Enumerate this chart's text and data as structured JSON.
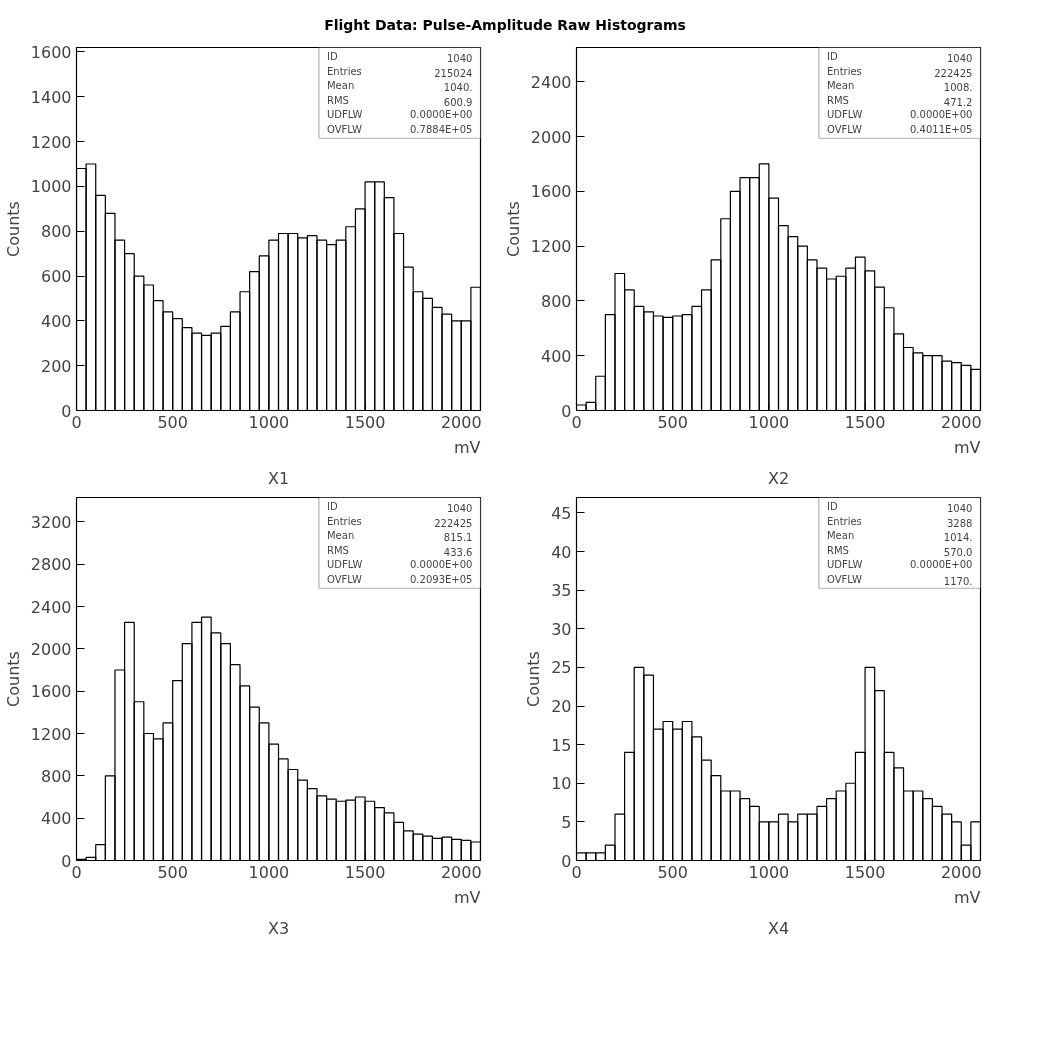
{
  "chart_data": [
    {
      "type": "histogram",
      "subtitle": "Flight Data: Pulse-Amplitude Raw Histograms",
      "title": "X1",
      "xlabel": "mV",
      "ylabel": "Counts",
      "color": "#000000",
      "grid": false,
      "bins": [
        0,
        50,
        100,
        150,
        200,
        250,
        300,
        350,
        400,
        450,
        500,
        550,
        600,
        650,
        700,
        750,
        800,
        850,
        900,
        950,
        1000,
        1050,
        1100,
        1150,
        1200,
        1250,
        1300,
        1350,
        1400,
        1450,
        1500,
        1550,
        1600,
        1650,
        1700,
        1750,
        1800,
        1850,
        1900,
        1950,
        2000,
        2050,
        2100
      ],
      "values": [
        1080,
        1100,
        960,
        880,
        760,
        700,
        600,
        560,
        490,
        440,
        410,
        370,
        345,
        335,
        345,
        375,
        440,
        530,
        620,
        690,
        760,
        790,
        790,
        770,
        780,
        760,
        740,
        760,
        820,
        900,
        1020,
        1020,
        950,
        790,
        640,
        530,
        500,
        460,
        430,
        400,
        400,
        550
      ],
      "xlim": [
        0,
        2100
      ],
      "xticks": [
        0,
        500,
        1000,
        1500,
        2000
      ],
      "ylim": [
        0,
        1620
      ],
      "yticks": [
        0,
        200,
        400,
        600,
        800,
        1000,
        1200,
        1400,
        1600
      ],
      "annotations": [
        "ID",
        "1040",
        "Entries",
        "215024",
        "Mean",
        "1040.",
        "RMS",
        "600.9",
        "UDFLW",
        "0.0000E+00",
        "OVFLW",
        "0.7884E+05"
      ]
    },
    {
      "type": "histogram",
      "title": "X2",
      "xlabel": "mV",
      "ylabel": "Counts",
      "color": "#000000",
      "grid": false,
      "bins": [
        0,
        50,
        100,
        150,
        200,
        250,
        300,
        350,
        400,
        450,
        500,
        550,
        600,
        650,
        700,
        750,
        800,
        850,
        900,
        950,
        1000,
        1050,
        1100,
        1150,
        1200,
        1250,
        1300,
        1350,
        1400,
        1450,
        1500,
        1550,
        1600,
        1650,
        1700,
        1750,
        1800,
        1850,
        1900,
        1950,
        2000,
        2050,
        2100
      ],
      "values": [
        40,
        60,
        250,
        700,
        1000,
        880,
        760,
        720,
        690,
        680,
        690,
        700,
        760,
        880,
        1100,
        1400,
        1600,
        1700,
        1700,
        1800,
        1550,
        1350,
        1270,
        1200,
        1100,
        1040,
        960,
        980,
        1040,
        1120,
        1020,
        900,
        750,
        560,
        460,
        420,
        400,
        400,
        360,
        350,
        330,
        300
      ],
      "xlim": [
        0,
        2100
      ],
      "xticks": [
        0,
        500,
        1000,
        1500,
        2000
      ],
      "ylim": [
        0,
        2650
      ],
      "yticks": [
        0,
        400,
        800,
        1200,
        1600,
        2000,
        2400
      ],
      "annotations": [
        "ID",
        "1040",
        "Entries",
        "222425",
        "Mean",
        "1008.",
        "RMS",
        "471.2",
        "UDFLW",
        "0.0000E+00",
        "OVFLW",
        "0.4011E+05"
      ]
    },
    {
      "type": "histogram",
      "title": "X3",
      "xlabel": "mV",
      "ylabel": "Counts",
      "color": "#000000",
      "grid": false,
      "bins": [
        0,
        50,
        100,
        150,
        200,
        250,
        300,
        350,
        400,
        450,
        500,
        550,
        600,
        650,
        700,
        750,
        800,
        850,
        900,
        950,
        1000,
        1050,
        1100,
        1150,
        1200,
        1250,
        1300,
        1350,
        1400,
        1450,
        1500,
        1550,
        1600,
        1650,
        1700,
        1750,
        1800,
        1850,
        1900,
        1950,
        2000,
        2050,
        2100
      ],
      "values": [
        10,
        30,
        150,
        800,
        1800,
        2250,
        1500,
        1200,
        1150,
        1300,
        1700,
        2050,
        2250,
        2300,
        2150,
        2050,
        1850,
        1650,
        1450,
        1300,
        1100,
        960,
        860,
        760,
        680,
        610,
        580,
        560,
        570,
        600,
        560,
        500,
        450,
        360,
        280,
        250,
        230,
        210,
        220,
        200,
        190,
        175
      ],
      "xlim": [
        0,
        2100
      ],
      "xticks": [
        0,
        500,
        1000,
        1500,
        2000
      ],
      "ylim": [
        0,
        3430
      ],
      "yticks": [
        0,
        400,
        800,
        1200,
        1600,
        2000,
        2400,
        2800,
        3200
      ],
      "annotations": [
        "ID",
        "1040",
        "Entries",
        "222425",
        "Mean",
        "815.1",
        "RMS",
        "433.6",
        "UDFLW",
        "0.0000E+00",
        "OVFLW",
        "0.2093E+05"
      ]
    },
    {
      "type": "histogram",
      "title": "X4",
      "xlabel": "mV",
      "ylabel": "Counts",
      "color": "#000000",
      "grid": false,
      "bins": [
        0,
        50,
        100,
        150,
        200,
        250,
        300,
        350,
        400,
        450,
        500,
        550,
        600,
        650,
        700,
        750,
        800,
        850,
        900,
        950,
        1000,
        1050,
        1100,
        1150,
        1200,
        1250,
        1300,
        1350,
        1400,
        1450,
        1500,
        1550,
        1600,
        1650,
        1700,
        1750,
        1800,
        1850,
        1900,
        1950,
        2000,
        2050,
        2100
      ],
      "values": [
        1,
        1,
        1,
        2,
        6,
        14,
        25,
        24,
        17,
        18,
        17,
        18,
        16,
        13,
        11,
        9,
        9,
        8,
        7,
        5,
        5,
        6,
        5,
        6,
        6,
        7,
        8,
        9,
        10,
        14,
        25,
        22,
        14,
        12,
        9,
        9,
        8,
        7,
        6,
        5,
        2,
        5
      ],
      "xlim": [
        0,
        2100
      ],
      "xticks": [
        0,
        500,
        1000,
        1500,
        2000
      ],
      "ylim": [
        0,
        47
      ],
      "yticks": [
        0,
        5,
        10,
        15,
        20,
        25,
        30,
        35,
        40,
        45
      ],
      "annotations": [
        "ID",
        "1040",
        "Entries",
        "3288",
        "Mean",
        "1014.",
        "RMS",
        "570.0",
        "UDFLW",
        "0.0000E+00",
        "OVFLW",
        "1170."
      ]
    }
  ]
}
